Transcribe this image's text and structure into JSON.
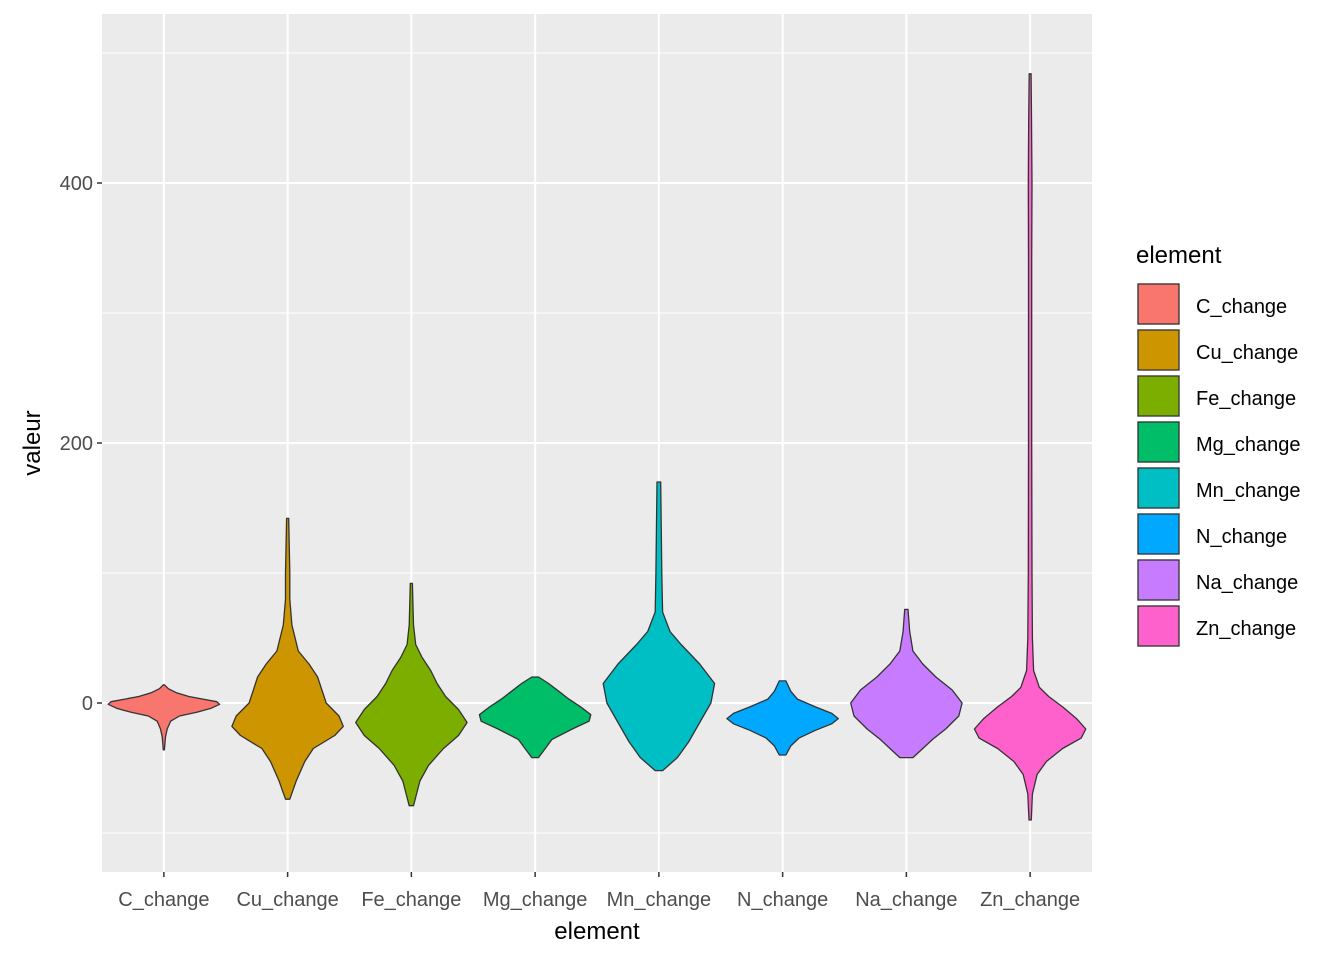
{
  "chart_data": {
    "type": "violin",
    "xlabel": "element",
    "ylabel": "valeur",
    "ylim": [
      -130,
      530
    ],
    "yticks": [
      0,
      200,
      400
    ],
    "grid": true,
    "legend": {
      "title": "element",
      "position": "right"
    },
    "categories": [
      "C_change",
      "Cu_change",
      "Fe_change",
      "Mg_change",
      "Mn_change",
      "N_change",
      "Na_change",
      "Zn_change"
    ],
    "colors": [
      "#F8766D",
      "#CD9600",
      "#7CAE00",
      "#00BE67",
      "#00BFC4",
      "#00A9FF",
      "#C77CFF",
      "#FF61CC"
    ],
    "series": [
      {
        "name": "C_change",
        "min": -36,
        "max": 14,
        "profile": [
          [
            -36,
            1
          ],
          [
            -26,
            3
          ],
          [
            -20,
            6
          ],
          [
            -14,
            12
          ],
          [
            -10,
            28
          ],
          [
            -7,
            60
          ],
          [
            -4,
            85
          ],
          [
            -1,
            100
          ],
          [
            1,
            95
          ],
          [
            3,
            70
          ],
          [
            5,
            45
          ],
          [
            8,
            22
          ],
          [
            11,
            8
          ],
          [
            14,
            1
          ]
        ]
      },
      {
        "name": "Cu_change",
        "min": -74,
        "max": 142,
        "profile": [
          [
            -74,
            1
          ],
          [
            -60,
            4
          ],
          [
            -45,
            8
          ],
          [
            -35,
            12
          ],
          [
            -25,
            22
          ],
          [
            -18,
            26
          ],
          [
            -10,
            24
          ],
          [
            0,
            18
          ],
          [
            10,
            16
          ],
          [
            20,
            14
          ],
          [
            30,
            10
          ],
          [
            40,
            5
          ],
          [
            60,
            2
          ],
          [
            80,
            1
          ],
          [
            100,
            1
          ],
          [
            142,
            0.5
          ]
        ]
      },
      {
        "name": "Fe_change",
        "min": -79,
        "max": 92,
        "profile": [
          [
            -79,
            1
          ],
          [
            -60,
            4
          ],
          [
            -48,
            8
          ],
          [
            -35,
            15
          ],
          [
            -25,
            22
          ],
          [
            -15,
            26
          ],
          [
            -5,
            22
          ],
          [
            5,
            16
          ],
          [
            15,
            12
          ],
          [
            25,
            9
          ],
          [
            35,
            5
          ],
          [
            45,
            2
          ],
          [
            60,
            1
          ],
          [
            92,
            0.5
          ]
        ]
      },
      {
        "name": "Mg_change",
        "min": -42,
        "max": 20,
        "profile": [
          [
            -42,
            2
          ],
          [
            -35,
            6
          ],
          [
            -28,
            10
          ],
          [
            -20,
            22
          ],
          [
            -14,
            32
          ],
          [
            -9,
            33
          ],
          [
            -3,
            27
          ],
          [
            3,
            20
          ],
          [
            9,
            14
          ],
          [
            15,
            8
          ],
          [
            20,
            2
          ]
        ]
      },
      {
        "name": "Mn_change",
        "min": -52,
        "max": 170,
        "profile": [
          [
            -52,
            1
          ],
          [
            -42,
            5
          ],
          [
            -30,
            8
          ],
          [
            -15,
            11
          ],
          [
            0,
            14
          ],
          [
            15,
            15
          ],
          [
            30,
            11
          ],
          [
            45,
            6
          ],
          [
            55,
            3
          ],
          [
            70,
            1
          ],
          [
            100,
            0.8
          ],
          [
            170,
            0.5
          ]
        ]
      },
      {
        "name": "N_change",
        "min": -40,
        "max": 17,
        "profile": [
          [
            -40,
            2
          ],
          [
            -33,
            5
          ],
          [
            -27,
            10
          ],
          [
            -21,
            20
          ],
          [
            -16,
            30
          ],
          [
            -12,
            34
          ],
          [
            -8,
            30
          ],
          [
            -3,
            20
          ],
          [
            3,
            9
          ],
          [
            9,
            5
          ],
          [
            17,
            2
          ]
        ]
      },
      {
        "name": "Na_change",
        "min": -42,
        "max": 72,
        "profile": [
          [
            -42,
            2
          ],
          [
            -35,
            5
          ],
          [
            -28,
            8
          ],
          [
            -20,
            12
          ],
          [
            -10,
            16
          ],
          [
            0,
            17
          ],
          [
            10,
            14
          ],
          [
            20,
            9
          ],
          [
            30,
            5
          ],
          [
            40,
            2
          ],
          [
            55,
            1
          ],
          [
            72,
            0.5
          ]
        ]
      },
      {
        "name": "Zn_change",
        "min": -90,
        "max": 484,
        "profile": [
          [
            -90,
            0.5
          ],
          [
            -70,
            1
          ],
          [
            -55,
            3
          ],
          [
            -45,
            7
          ],
          [
            -35,
            14
          ],
          [
            -27,
            22
          ],
          [
            -20,
            24
          ],
          [
            -12,
            20
          ],
          [
            -3,
            14
          ],
          [
            5,
            8
          ],
          [
            12,
            4
          ],
          [
            25,
            1.5
          ],
          [
            50,
            1
          ],
          [
            100,
            0.8
          ],
          [
            200,
            0.7
          ],
          [
            340,
            0.7
          ],
          [
            400,
            0.8
          ],
          [
            450,
            0.6
          ],
          [
            484,
            0.4
          ]
        ]
      }
    ]
  }
}
